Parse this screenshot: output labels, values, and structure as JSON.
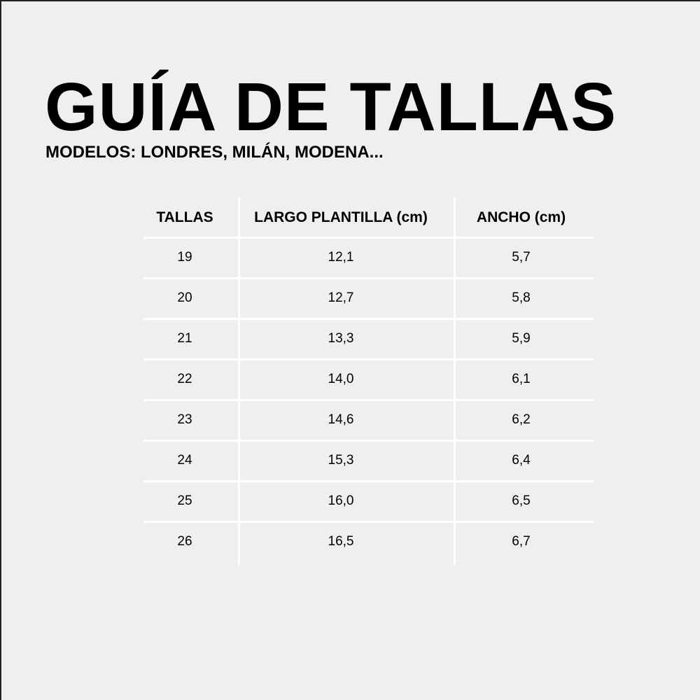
{
  "title": "GUÍA DE TALLAS",
  "subtitle": "MODELOS: LONDRES, MILÁN, MODENA...",
  "table": {
    "headers": [
      "TALLAS",
      "LARGO PLANTILLA (cm)",
      "ANCHO (cm)"
    ],
    "rows": [
      [
        "19",
        "12,1",
        "5,7"
      ],
      [
        "20",
        "12,7",
        "5,8"
      ],
      [
        "21",
        "13,3",
        "5,9"
      ],
      [
        "22",
        "14,0",
        "6,1"
      ],
      [
        "23",
        "14,6",
        "6,2"
      ],
      [
        "24",
        "15,3",
        "6,4"
      ],
      [
        "25",
        "16,0",
        "6,5"
      ],
      [
        "26",
        "16,5",
        "6,7"
      ]
    ]
  }
}
